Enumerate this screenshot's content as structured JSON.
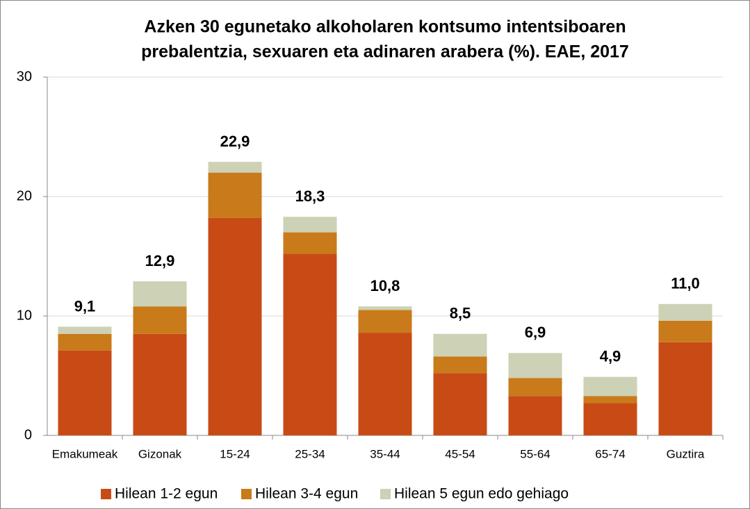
{
  "chart_data": {
    "type": "stacked_bar",
    "title": [
      "Azken 30 egunetako alkoholaren kontsumo intentsiboaren",
      "prebalentzia, sexuaren eta adinaren arabera (%). EAE, 2017"
    ],
    "categories": [
      "Emakumeak",
      "Gizonak",
      "15-24",
      "25-34",
      "35-44",
      "45-54",
      "55-64",
      "65-74",
      "Guztira"
    ],
    "series": [
      {
        "name": "Hilean 1-2 egun",
        "color": "#c84b16",
        "values": [
          7.1,
          8.5,
          18.2,
          15.2,
          8.6,
          5.2,
          3.3,
          2.7,
          7.8
        ]
      },
      {
        "name": "Hilean 3-4 egun",
        "color": "#c97a1a",
        "values": [
          1.4,
          2.3,
          3.8,
          1.8,
          1.9,
          1.4,
          1.5,
          0.6,
          1.8
        ]
      },
      {
        "name": "Hilean 5 egun edo gehiago",
        "color": "#cdd1b5",
        "values": [
          0.6,
          2.1,
          0.9,
          1.3,
          0.3,
          1.9,
          2.1,
          1.6,
          1.4
        ]
      }
    ],
    "totals": [
      9.1,
      12.9,
      22.9,
      18.3,
      10.8,
      8.5,
      6.9,
      4.9,
      11.0
    ],
    "total_labels": [
      "9,1",
      "12,9",
      "22,9",
      "18,3",
      "10,8",
      "8,5",
      "6,9",
      "4,9",
      "11,0"
    ],
    "ylim": [
      0,
      30
    ],
    "yticks": [
      0,
      10,
      20,
      30
    ],
    "grid": true,
    "legend": "bottom"
  }
}
